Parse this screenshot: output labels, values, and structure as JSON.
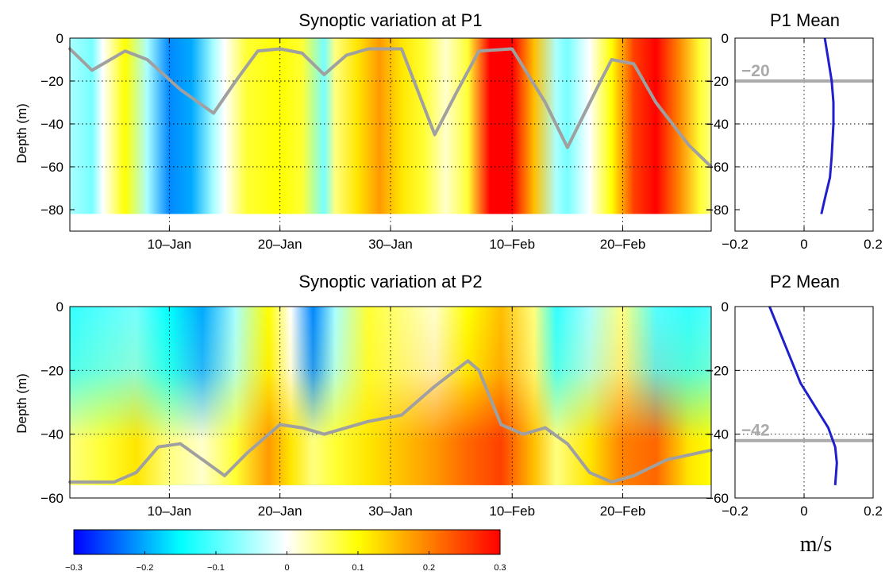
{
  "chart_data": [
    {
      "type": "heatmap",
      "title": "Synoptic variation at P1",
      "ylabel": "Depth (m)",
      "xlim": [
        "2014-01-01",
        "2014-02-28"
      ],
      "ylim": [
        -90,
        0
      ],
      "xticks": [
        {
          "date": "2014-01-10",
          "label": "10–Jan"
        },
        {
          "date": "2014-01-20",
          "label": "20–Jan"
        },
        {
          "date": "2014-01-30",
          "label": "30–Jan"
        },
        {
          "date": "2014-02-10",
          "label": "10–Feb"
        },
        {
          "date": "2014-02-20",
          "label": "20–Feb"
        }
      ],
      "yticks": [
        {
          "value": 0,
          "label": "0"
        },
        {
          "value": -20,
          "label": "−20"
        },
        {
          "value": -40,
          "label": "−40"
        },
        {
          "value": -60,
          "label": "−60"
        },
        {
          "value": -80,
          "label": "−80"
        }
      ],
      "grid": true,
      "data_depth_range": [
        -82,
        0
      ],
      "velocity_bands": [
        {
          "date": "2014-01-01",
          "value": -0.05
        },
        {
          "date": "2014-01-03",
          "value": -0.08
        },
        {
          "date": "2014-01-04",
          "value": 0.0
        },
        {
          "date": "2014-01-06",
          "value": 0.1
        },
        {
          "date": "2014-01-08",
          "value": -0.05
        },
        {
          "date": "2014-01-10",
          "value": -0.22
        },
        {
          "date": "2014-01-12",
          "value": -0.2
        },
        {
          "date": "2014-01-14",
          "value": -0.05
        },
        {
          "date": "2014-01-15",
          "value": 0.0
        },
        {
          "date": "2014-01-17",
          "value": 0.08
        },
        {
          "date": "2014-01-20",
          "value": 0.1
        },
        {
          "date": "2014-01-22",
          "value": 0.08
        },
        {
          "date": "2014-01-24",
          "value": -0.08
        },
        {
          "date": "2014-01-25",
          "value": 0.05
        },
        {
          "date": "2014-01-27",
          "value": 0.12
        },
        {
          "date": "2014-01-29",
          "value": 0.18
        },
        {
          "date": "2014-01-31",
          "value": 0.12
        },
        {
          "date": "2014-02-02",
          "value": 0.08
        },
        {
          "date": "2014-02-04",
          "value": 0.02
        },
        {
          "date": "2014-02-06",
          "value": 0.08
        },
        {
          "date": "2014-02-08",
          "value": 0.3
        },
        {
          "date": "2014-02-10",
          "value": 0.3
        },
        {
          "date": "2014-02-12",
          "value": 0.15
        },
        {
          "date": "2014-02-14",
          "value": -0.05
        },
        {
          "date": "2014-02-15",
          "value": -0.08
        },
        {
          "date": "2014-02-17",
          "value": 0.0
        },
        {
          "date": "2014-02-19",
          "value": 0.1
        },
        {
          "date": "2014-02-21",
          "value": 0.25
        },
        {
          "date": "2014-02-23",
          "value": 0.3
        },
        {
          "date": "2014-02-25",
          "value": 0.2
        },
        {
          "date": "2014-02-27",
          "value": 0.08
        },
        {
          "date": "2014-02-28",
          "value": 0.05
        }
      ],
      "series": [
        {
          "color": "#a0a0a0",
          "points": [
            {
              "date": "2014-01-01",
              "depth": -5
            },
            {
              "date": "2014-01-03",
              "depth": -15
            },
            {
              "date": "2014-01-06",
              "depth": -6
            },
            {
              "date": "2014-01-08",
              "depth": -10
            },
            {
              "date": "2014-01-11",
              "depth": -24
            },
            {
              "date": "2014-01-14",
              "depth": -35
            },
            {
              "date": "2014-01-16",
              "depth": -20
            },
            {
              "date": "2014-01-18",
              "depth": -6
            },
            {
              "date": "2014-01-20",
              "depth": -5
            },
            {
              "date": "2014-01-22",
              "depth": -7
            },
            {
              "date": "2014-01-24",
              "depth": -17
            },
            {
              "date": "2014-01-26",
              "depth": -8
            },
            {
              "date": "2014-01-28",
              "depth": -5
            },
            {
              "date": "2014-01-31",
              "depth": -5
            },
            {
              "date": "2014-02-03",
              "depth": -45
            },
            {
              "date": "2014-02-05",
              "depth": -25
            },
            {
              "date": "2014-02-07",
              "depth": -6
            },
            {
              "date": "2014-02-10",
              "depth": -5
            },
            {
              "date": "2014-02-13",
              "depth": -30
            },
            {
              "date": "2014-02-15",
              "depth": -51
            },
            {
              "date": "2014-02-18",
              "depth": -20
            },
            {
              "date": "2014-02-19",
              "depth": -10
            },
            {
              "date": "2014-02-21",
              "depth": -12
            },
            {
              "date": "2014-02-23",
              "depth": -30
            },
            {
              "date": "2014-02-26",
              "depth": -50
            },
            {
              "date": "2014-02-28",
              "depth": -60
            }
          ]
        }
      ]
    },
    {
      "type": "line",
      "title": "P1 Mean",
      "xlim": [
        -0.2,
        0.2
      ],
      "ylim": [
        -90,
        0
      ],
      "xticks": [
        {
          "value": -0.2,
          "label": "−0.2"
        },
        {
          "value": 0,
          "label": "0"
        },
        {
          "value": 0.2,
          "label": "0.2"
        }
      ],
      "yticks": [
        {
          "value": 0,
          "label": "0"
        },
        {
          "value": -20,
          "label": "−20"
        },
        {
          "value": -40,
          "label": "−40"
        },
        {
          "value": -60,
          "label": "−60"
        },
        {
          "value": -80,
          "label": "−80"
        }
      ],
      "grid": true,
      "series": [
        {
          "color": "#1f1fcc",
          "points": [
            [
              0.06,
              0
            ],
            [
              0.07,
              -10
            ],
            [
              0.08,
              -20
            ],
            [
              0.085,
              -30
            ],
            [
              0.085,
              -40
            ],
            [
              0.08,
              -55
            ],
            [
              0.075,
              -65
            ],
            [
              0.06,
              -75
            ],
            [
              0.05,
              -82
            ]
          ]
        }
      ],
      "reference_line": {
        "depth": -20,
        "label": "−20",
        "color": "#aaaaaa"
      }
    },
    {
      "type": "heatmap",
      "title": "Synoptic variation at P2",
      "ylabel": "Depth (m)",
      "xlim": [
        "2014-01-01",
        "2014-02-28"
      ],
      "ylim": [
        -60,
        0
      ],
      "xticks": [
        {
          "date": "2014-01-10",
          "label": "10–Jan"
        },
        {
          "date": "2014-01-20",
          "label": "20–Jan"
        },
        {
          "date": "2014-01-30",
          "label": "30–Jan"
        },
        {
          "date": "2014-02-10",
          "label": "10–Feb"
        },
        {
          "date": "2014-02-20",
          "label": "20–Feb"
        }
      ],
      "yticks": [
        {
          "value": 0,
          "label": "0"
        },
        {
          "value": -20,
          "label": "−20"
        },
        {
          "value": -40,
          "label": "−40"
        },
        {
          "value": -60,
          "label": "−60"
        }
      ],
      "grid": true,
      "data_depth_range": [
        -56,
        0
      ],
      "velocity_bands": [
        {
          "date": "2014-01-01",
          "value": -0.12,
          "bottom": 0.05
        },
        {
          "date": "2014-01-04",
          "value": -0.1,
          "bottom": 0.08
        },
        {
          "date": "2014-01-07",
          "value": -0.08,
          "bottom": 0.12
        },
        {
          "date": "2014-01-10",
          "value": -0.15,
          "bottom": 0.05
        },
        {
          "date": "2014-01-13",
          "value": -0.2,
          "bottom": 0.02
        },
        {
          "date": "2014-01-16",
          "value": -0.05,
          "bottom": 0.08
        },
        {
          "date": "2014-01-19",
          "value": 0.1,
          "bottom": 0.18
        },
        {
          "date": "2014-01-21",
          "value": 0.0,
          "bottom": 0.12
        },
        {
          "date": "2014-01-23",
          "value": -0.22,
          "bottom": 0.05
        },
        {
          "date": "2014-01-25",
          "value": -0.05,
          "bottom": 0.08
        },
        {
          "date": "2014-01-28",
          "value": 0.08,
          "bottom": 0.12
        },
        {
          "date": "2014-01-31",
          "value": 0.05,
          "bottom": 0.15
        },
        {
          "date": "2014-02-03",
          "value": 0.02,
          "bottom": 0.18
        },
        {
          "date": "2014-02-06",
          "value": 0.1,
          "bottom": 0.22
        },
        {
          "date": "2014-02-09",
          "value": 0.15,
          "bottom": 0.25
        },
        {
          "date": "2014-02-12",
          "value": 0.05,
          "bottom": 0.15
        },
        {
          "date": "2014-02-14",
          "value": -0.12,
          "bottom": 0.05
        },
        {
          "date": "2014-02-17",
          "value": -0.05,
          "bottom": 0.12
        },
        {
          "date": "2014-02-20",
          "value": 0.05,
          "bottom": 0.2
        },
        {
          "date": "2014-02-23",
          "value": -0.1,
          "bottom": 0.22
        },
        {
          "date": "2014-02-26",
          "value": -0.12,
          "bottom": 0.12
        },
        {
          "date": "2014-02-28",
          "value": -0.1,
          "bottom": 0.1
        }
      ],
      "series": [
        {
          "color": "#a0a0a0",
          "points": [
            {
              "date": "2014-01-01",
              "depth": -55
            },
            {
              "date": "2014-01-05",
              "depth": -55
            },
            {
              "date": "2014-01-07",
              "depth": -52
            },
            {
              "date": "2014-01-09",
              "depth": -44
            },
            {
              "date": "2014-01-11",
              "depth": -43
            },
            {
              "date": "2014-01-13",
              "depth": -48
            },
            {
              "date": "2014-01-15",
              "depth": -53
            },
            {
              "date": "2014-01-17",
              "depth": -46
            },
            {
              "date": "2014-01-20",
              "depth": -37
            },
            {
              "date": "2014-01-22",
              "depth": -38
            },
            {
              "date": "2014-01-24",
              "depth": -40
            },
            {
              "date": "2014-01-26",
              "depth": -38
            },
            {
              "date": "2014-01-28",
              "depth": -36
            },
            {
              "date": "2014-01-31",
              "depth": -34
            },
            {
              "date": "2014-02-03",
              "depth": -25
            },
            {
              "date": "2014-02-06",
              "depth": -17
            },
            {
              "date": "2014-02-07",
              "depth": -20
            },
            {
              "date": "2014-02-09",
              "depth": -37
            },
            {
              "date": "2014-02-11",
              "depth": -40
            },
            {
              "date": "2014-02-13",
              "depth": -38
            },
            {
              "date": "2014-02-15",
              "depth": -43
            },
            {
              "date": "2014-02-17",
              "depth": -52
            },
            {
              "date": "2014-02-19",
              "depth": -55
            },
            {
              "date": "2014-02-21",
              "depth": -53
            },
            {
              "date": "2014-02-24",
              "depth": -48
            },
            {
              "date": "2014-02-28",
              "depth": -45
            }
          ]
        }
      ]
    },
    {
      "type": "line",
      "title": "P2 Mean",
      "xlabel": "m/s",
      "xlim": [
        -0.2,
        0.2
      ],
      "ylim": [
        -60,
        0
      ],
      "xticks": [
        {
          "value": -0.2,
          "label": "−0.2"
        },
        {
          "value": 0,
          "label": "0"
        },
        {
          "value": 0.2,
          "label": "0.2"
        }
      ],
      "yticks": [
        {
          "value": 0,
          "label": "0"
        },
        {
          "value": -20,
          "label": "−20"
        },
        {
          "value": -40,
          "label": "−40"
        },
        {
          "value": -60,
          "label": "−60"
        }
      ],
      "grid": true,
      "series": [
        {
          "color": "#1f1fcc",
          "points": [
            [
              -0.1,
              0
            ],
            [
              -0.07,
              -8
            ],
            [
              -0.04,
              -16
            ],
            [
              -0.01,
              -24
            ],
            [
              0.03,
              -31
            ],
            [
              0.07,
              -38
            ],
            [
              0.09,
              -44
            ],
            [
              0.095,
              -49
            ],
            [
              0.09,
              -56
            ]
          ]
        }
      ],
      "reference_line": {
        "depth": -42,
        "label": "−42",
        "color": "#aaaaaa"
      }
    },
    {
      "type": "colorbar",
      "range": [
        -0.3,
        0.3
      ],
      "colors": [
        "#0000ff",
        "#00ffff",
        "#ffffff",
        "#ffff00",
        "#ff8000",
        "#ff0000"
      ],
      "color_stops": [
        -0.3,
        -0.15,
        0,
        0.1,
        0.2,
        0.3
      ],
      "ticks": [
        {
          "value": -0.3,
          "label": "−0.3"
        },
        {
          "value": -0.2,
          "label": "−0.2"
        },
        {
          "value": -0.1,
          "label": "−0.1"
        },
        {
          "value": 0,
          "label": "0"
        },
        {
          "value": 0.1,
          "label": "0.1"
        },
        {
          "value": 0.2,
          "label": "0.2"
        },
        {
          "value": 0.3,
          "label": "0.3"
        }
      ]
    }
  ]
}
